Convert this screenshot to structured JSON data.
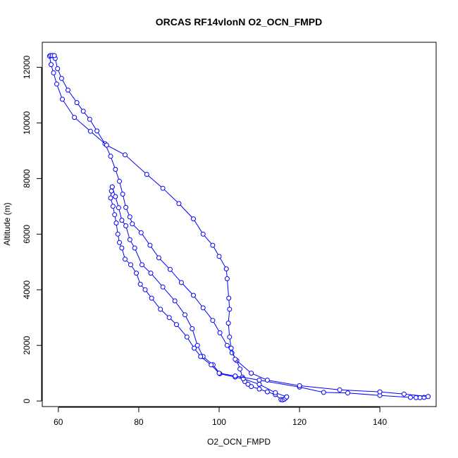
{
  "chart_data": {
    "type": "line",
    "title": "ORCAS RF14vlonN O2_OCN_FMPD",
    "xlabel": "O2_OCN_FMPD",
    "ylabel": "Altitude (m)",
    "xlim": [
      56,
      154
    ],
    "ylim": [
      -200,
      12900
    ],
    "xticks": [
      60,
      80,
      100,
      120,
      140
    ],
    "yticks": [
      0,
      2000,
      4000,
      6000,
      8000,
      10000,
      12000
    ],
    "grid": false,
    "marker": "open-circle",
    "color": "#0000ff",
    "series": [
      {
        "values": [
          [
            58.0,
            12420
          ],
          [
            58.3,
            12420
          ],
          [
            58.6,
            12420
          ],
          [
            58.9,
            12420
          ],
          [
            59.2,
            12320
          ],
          [
            59.8,
            11950
          ],
          [
            60.8,
            11600
          ],
          [
            62.4,
            11180
          ],
          [
            64.6,
            10730
          ],
          [
            66.2,
            10420
          ],
          [
            67.8,
            10130
          ],
          [
            69.6,
            9710
          ],
          [
            71.6,
            9250
          ],
          [
            73.0,
            8800
          ],
          [
            74.2,
            8330
          ],
          [
            75.2,
            7900
          ],
          [
            76.0,
            7440
          ],
          [
            76.8,
            6960
          ],
          [
            77.8,
            6620
          ],
          [
            78.4,
            6370
          ],
          [
            80.6,
            6050
          ],
          [
            82.8,
            5600
          ],
          [
            85.0,
            5150
          ],
          [
            87.8,
            4730
          ],
          [
            90.6,
            4260
          ],
          [
            93.6,
            3800
          ],
          [
            96.0,
            3350
          ],
          [
            98.4,
            2900
          ],
          [
            100.2,
            2450
          ],
          [
            102.0,
            2000
          ],
          [
            103.2,
            1730
          ],
          [
            104.4,
            1450
          ],
          [
            105.2,
            1150
          ],
          [
            105.8,
            860
          ],
          [
            106.4,
            700
          ],
          [
            107.2,
            600
          ],
          [
            108.0,
            520
          ],
          [
            110.0,
            430
          ],
          [
            112.0,
            330
          ],
          [
            114.0,
            230
          ],
          [
            115.4,
            50
          ],
          [
            115.8,
            40
          ],
          [
            116.2,
            60
          ],
          [
            116.5,
            100
          ],
          [
            116.8,
            150
          ]
        ]
      },
      {
        "values": [
          [
            116.8,
            150
          ],
          [
            114.0,
            300
          ],
          [
            110.0,
            600
          ],
          [
            106.0,
            800
          ],
          [
            104.0,
            860
          ],
          [
            100.2,
            980
          ],
          [
            98.5,
            1300
          ],
          [
            96.0,
            1600
          ],
          [
            94.6,
            2000
          ],
          [
            93.3,
            2600
          ],
          [
            91.5,
            3100
          ],
          [
            89.0,
            3600
          ],
          [
            86.0,
            4100
          ],
          [
            83.0,
            4600
          ],
          [
            80.8,
            4900
          ],
          [
            79.0,
            5500
          ],
          [
            77.8,
            5800
          ],
          [
            76.8,
            6300
          ],
          [
            75.8,
            6500
          ],
          [
            75.0,
            6950
          ],
          [
            74.2,
            7350
          ],
          [
            73.4,
            7700
          ]
        ]
      },
      {
        "values": [
          [
            73.4,
            7700
          ],
          [
            73.2,
            7550
          ],
          [
            73.0,
            7300
          ],
          [
            73.6,
            7000
          ],
          [
            74.0,
            6700
          ],
          [
            74.4,
            6400
          ],
          [
            74.8,
            6000
          ],
          [
            75.2,
            5700
          ],
          [
            75.8,
            5500
          ],
          [
            76.6,
            5100
          ],
          [
            78.0,
            4900
          ],
          [
            79.4,
            4600
          ],
          [
            80.4,
            4200
          ],
          [
            81.6,
            4000
          ],
          [
            83.2,
            3700
          ],
          [
            85.4,
            3300
          ],
          [
            87.6,
            3000
          ],
          [
            89.4,
            2750
          ],
          [
            92.0,
            2300
          ],
          [
            93.8,
            1900
          ],
          [
            95.4,
            1600
          ],
          [
            98.0,
            1300
          ],
          [
            100.0,
            1000
          ],
          [
            104.0,
            900
          ],
          [
            110.0,
            750
          ],
          [
            120.0,
            500
          ],
          [
            126.0,
            310
          ],
          [
            132.0,
            290
          ],
          [
            140.0,
            200
          ],
          [
            147.6,
            130
          ],
          [
            149.0,
            120
          ],
          [
            150.0,
            120
          ],
          [
            151.0,
            130
          ],
          [
            152.0,
            160
          ]
        ]
      },
      {
        "values": [
          [
            152.0,
            160
          ],
          [
            146.0,
            250
          ],
          [
            140.0,
            330
          ],
          [
            130.0,
            400
          ],
          [
            120.0,
            550
          ],
          [
            112.0,
            750
          ],
          [
            108.0,
            1000
          ],
          [
            104.0,
            1500
          ],
          [
            103.0,
            1900
          ],
          [
            102.6,
            2300
          ],
          [
            102.3,
            2800
          ],
          [
            102.6,
            3300
          ],
          [
            102.4,
            3700
          ],
          [
            102.0,
            4400
          ],
          [
            101.8,
            4750
          ],
          [
            100.0,
            5200
          ],
          [
            98.4,
            5600
          ],
          [
            96.0,
            6000
          ],
          [
            93.6,
            6550
          ],
          [
            90.0,
            7100
          ],
          [
            86.0,
            7650
          ],
          [
            82.0,
            8150
          ],
          [
            76.6,
            8850
          ],
          [
            72.0,
            9200
          ],
          [
            68.0,
            9700
          ],
          [
            64.0,
            10200
          ],
          [
            61.0,
            10850
          ],
          [
            59.6,
            11400
          ],
          [
            58.8,
            11800
          ],
          [
            58.2,
            12100
          ],
          [
            57.8,
            12400
          ],
          [
            58.1,
            12420
          ],
          [
            58.5,
            12420
          ],
          [
            59.0,
            12420
          ]
        ]
      }
    ]
  }
}
